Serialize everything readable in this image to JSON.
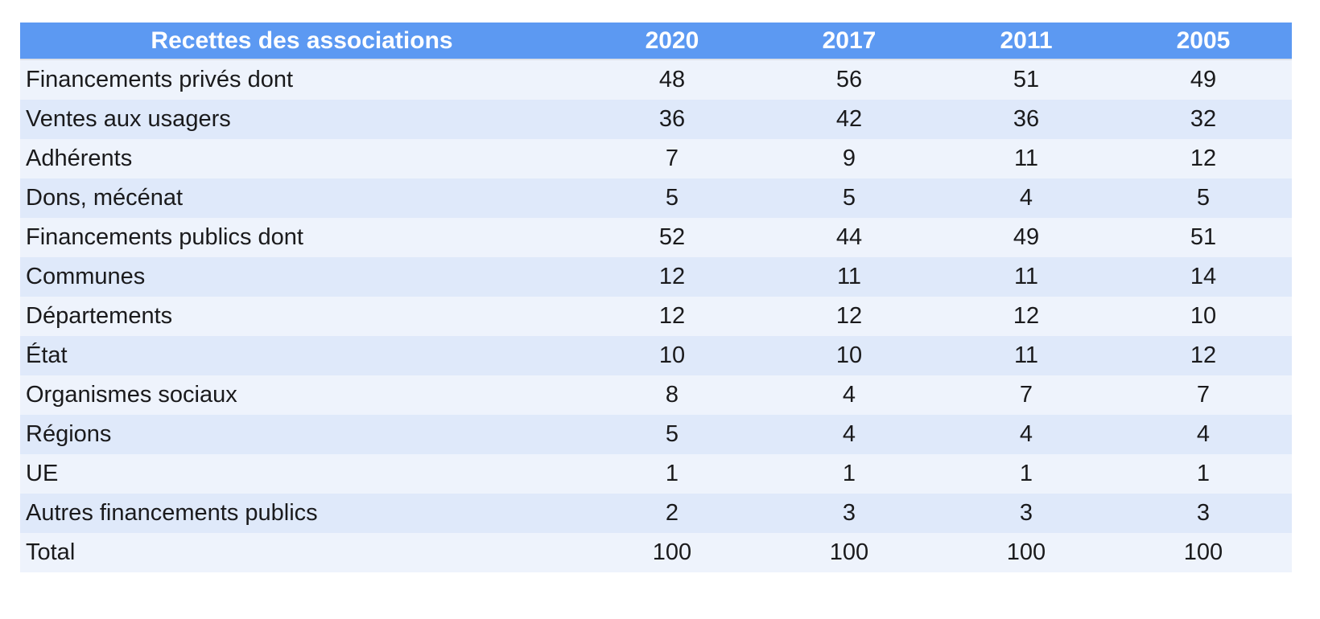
{
  "colors": {
    "header_bg": "#5C99F2",
    "header_text": "#FFFFFF",
    "row_light": "#EEF3FC",
    "row_dark": "#DFE9FA",
    "body_text": "#1A1A1C"
  },
  "table": {
    "title": "Recettes des associations",
    "columns": [
      "2020",
      "2017",
      "2011",
      "2005"
    ],
    "rows": [
      {
        "label": "Financements privés dont",
        "values": [
          48,
          56,
          51,
          49
        ]
      },
      {
        "label": "Ventes aux usagers",
        "values": [
          36,
          42,
          36,
          32
        ]
      },
      {
        "label": "Adhérents",
        "values": [
          7,
          9,
          11,
          12
        ]
      },
      {
        "label": "Dons, mécénat",
        "values": [
          5,
          5,
          4,
          5
        ]
      },
      {
        "label": "Financements publics dont",
        "values": [
          52,
          44,
          49,
          51
        ]
      },
      {
        "label": "Communes",
        "values": [
          12,
          11,
          11,
          14
        ]
      },
      {
        "label": "Départements",
        "values": [
          12,
          12,
          12,
          10
        ]
      },
      {
        "label": "État",
        "values": [
          10,
          10,
          11,
          12
        ]
      },
      {
        "label": "Organismes sociaux",
        "values": [
          8,
          4,
          7,
          7
        ]
      },
      {
        "label": "Régions",
        "values": [
          5,
          4,
          4,
          4
        ]
      },
      {
        "label": "UE",
        "values": [
          1,
          1,
          1,
          1
        ]
      },
      {
        "label": "Autres financements publics",
        "values": [
          2,
          3,
          3,
          3
        ]
      },
      {
        "label": "Total",
        "values": [
          100,
          100,
          100,
          100
        ]
      }
    ]
  },
  "chart_data": {
    "type": "table",
    "title": "Recettes des associations",
    "categories": [
      "2020",
      "2017",
      "2011",
      "2005"
    ],
    "unit": "percent",
    "series": [
      {
        "name": "Financements privés dont",
        "values": [
          48,
          56,
          51,
          49
        ]
      },
      {
        "name": "Ventes aux usagers",
        "values": [
          36,
          42,
          36,
          32
        ]
      },
      {
        "name": "Adhérents",
        "values": [
          7,
          9,
          11,
          12
        ]
      },
      {
        "name": "Dons, mécénat",
        "values": [
          5,
          5,
          4,
          5
        ]
      },
      {
        "name": "Financements publics dont",
        "values": [
          52,
          44,
          49,
          51
        ]
      },
      {
        "name": "Communes",
        "values": [
          12,
          11,
          11,
          14
        ]
      },
      {
        "name": "Départements",
        "values": [
          12,
          12,
          12,
          10
        ]
      },
      {
        "name": "État",
        "values": [
          10,
          10,
          11,
          12
        ]
      },
      {
        "name": "Organismes sociaux",
        "values": [
          8,
          4,
          7,
          7
        ]
      },
      {
        "name": "Régions",
        "values": [
          5,
          4,
          4,
          4
        ]
      },
      {
        "name": "UE",
        "values": [
          1,
          1,
          1,
          1
        ]
      },
      {
        "name": "Autres financements publics",
        "values": [
          2,
          3,
          3,
          3
        ]
      },
      {
        "name": "Total",
        "values": [
          100,
          100,
          100,
          100
        ]
      }
    ]
  }
}
